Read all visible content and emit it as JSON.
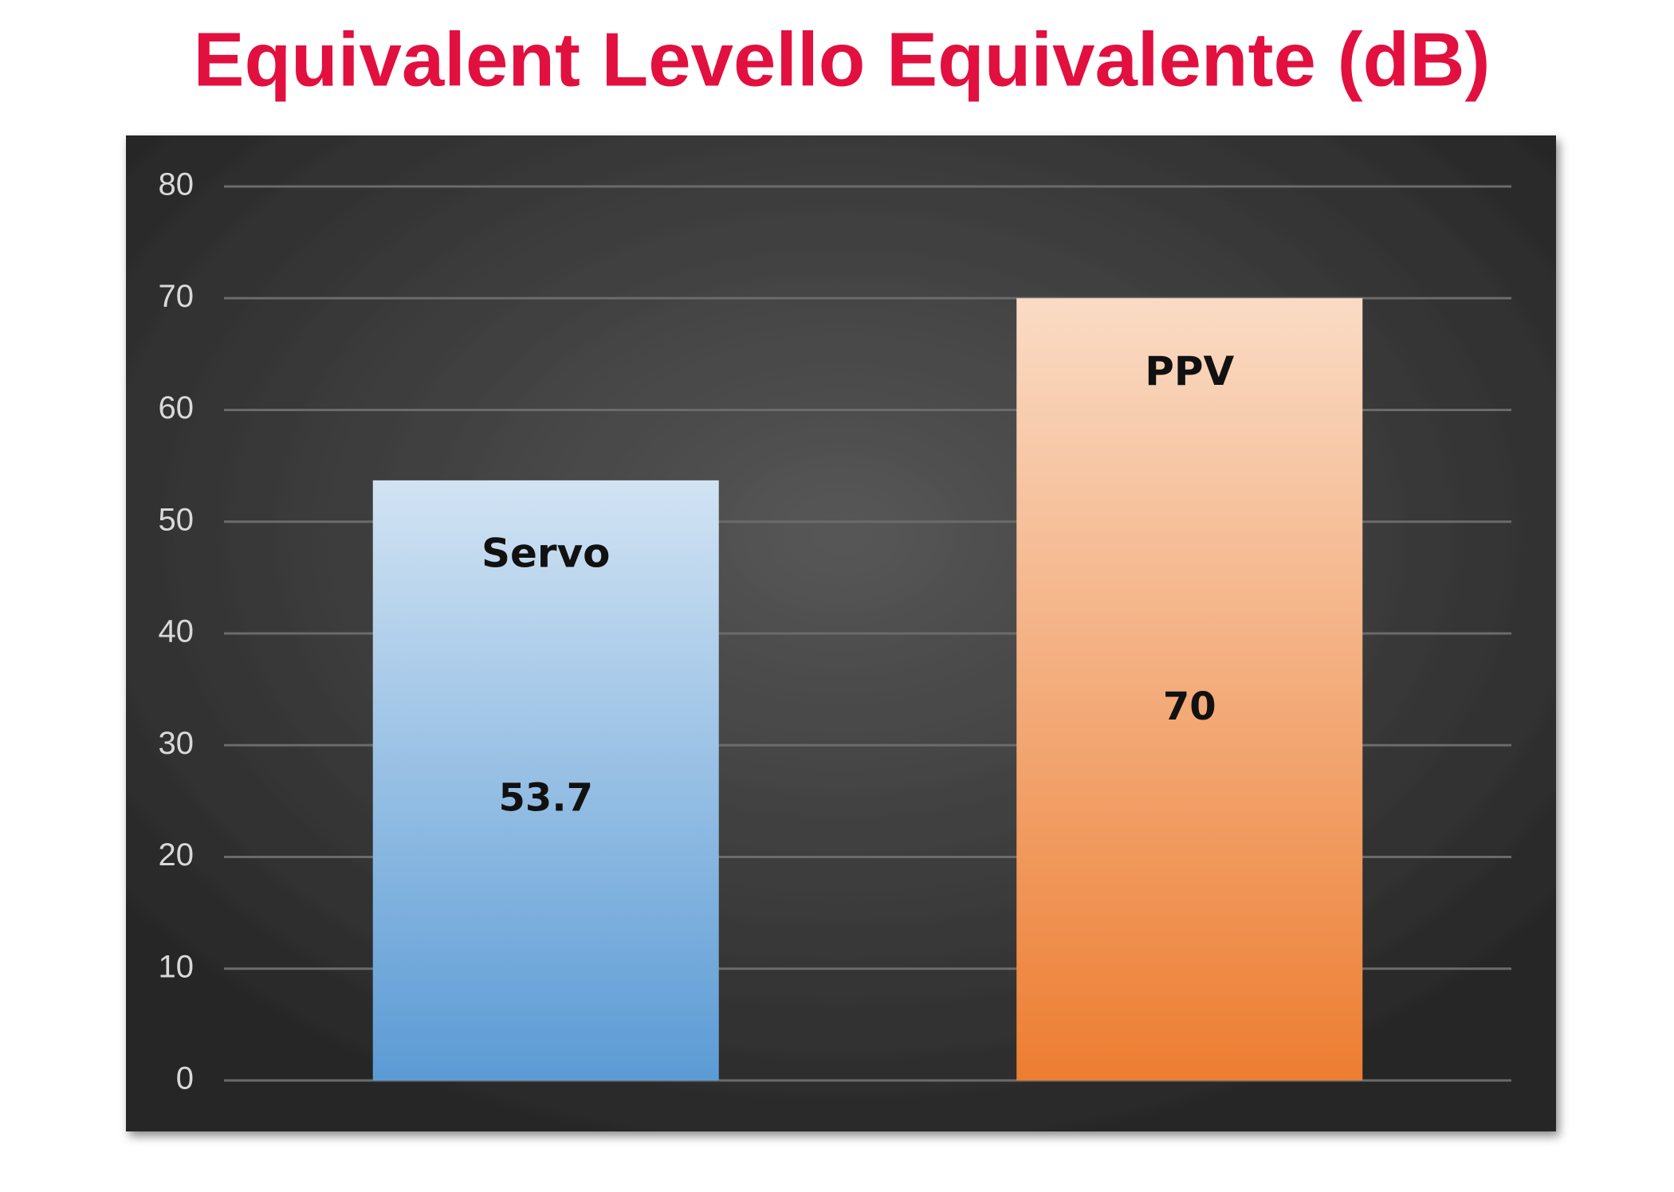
{
  "chart_data": {
    "type": "bar",
    "title": "Equivalent Levello Equivalente (dB)",
    "categories": [
      "Servo",
      "PPV"
    ],
    "values": [
      53.7,
      70
    ],
    "colors": [
      "#5b9bd5",
      "#ed7d31"
    ],
    "ylim": [
      0,
      80
    ],
    "yticks": [
      0,
      10,
      20,
      30,
      40,
      50,
      60,
      70,
      80
    ],
    "grid": true
  }
}
